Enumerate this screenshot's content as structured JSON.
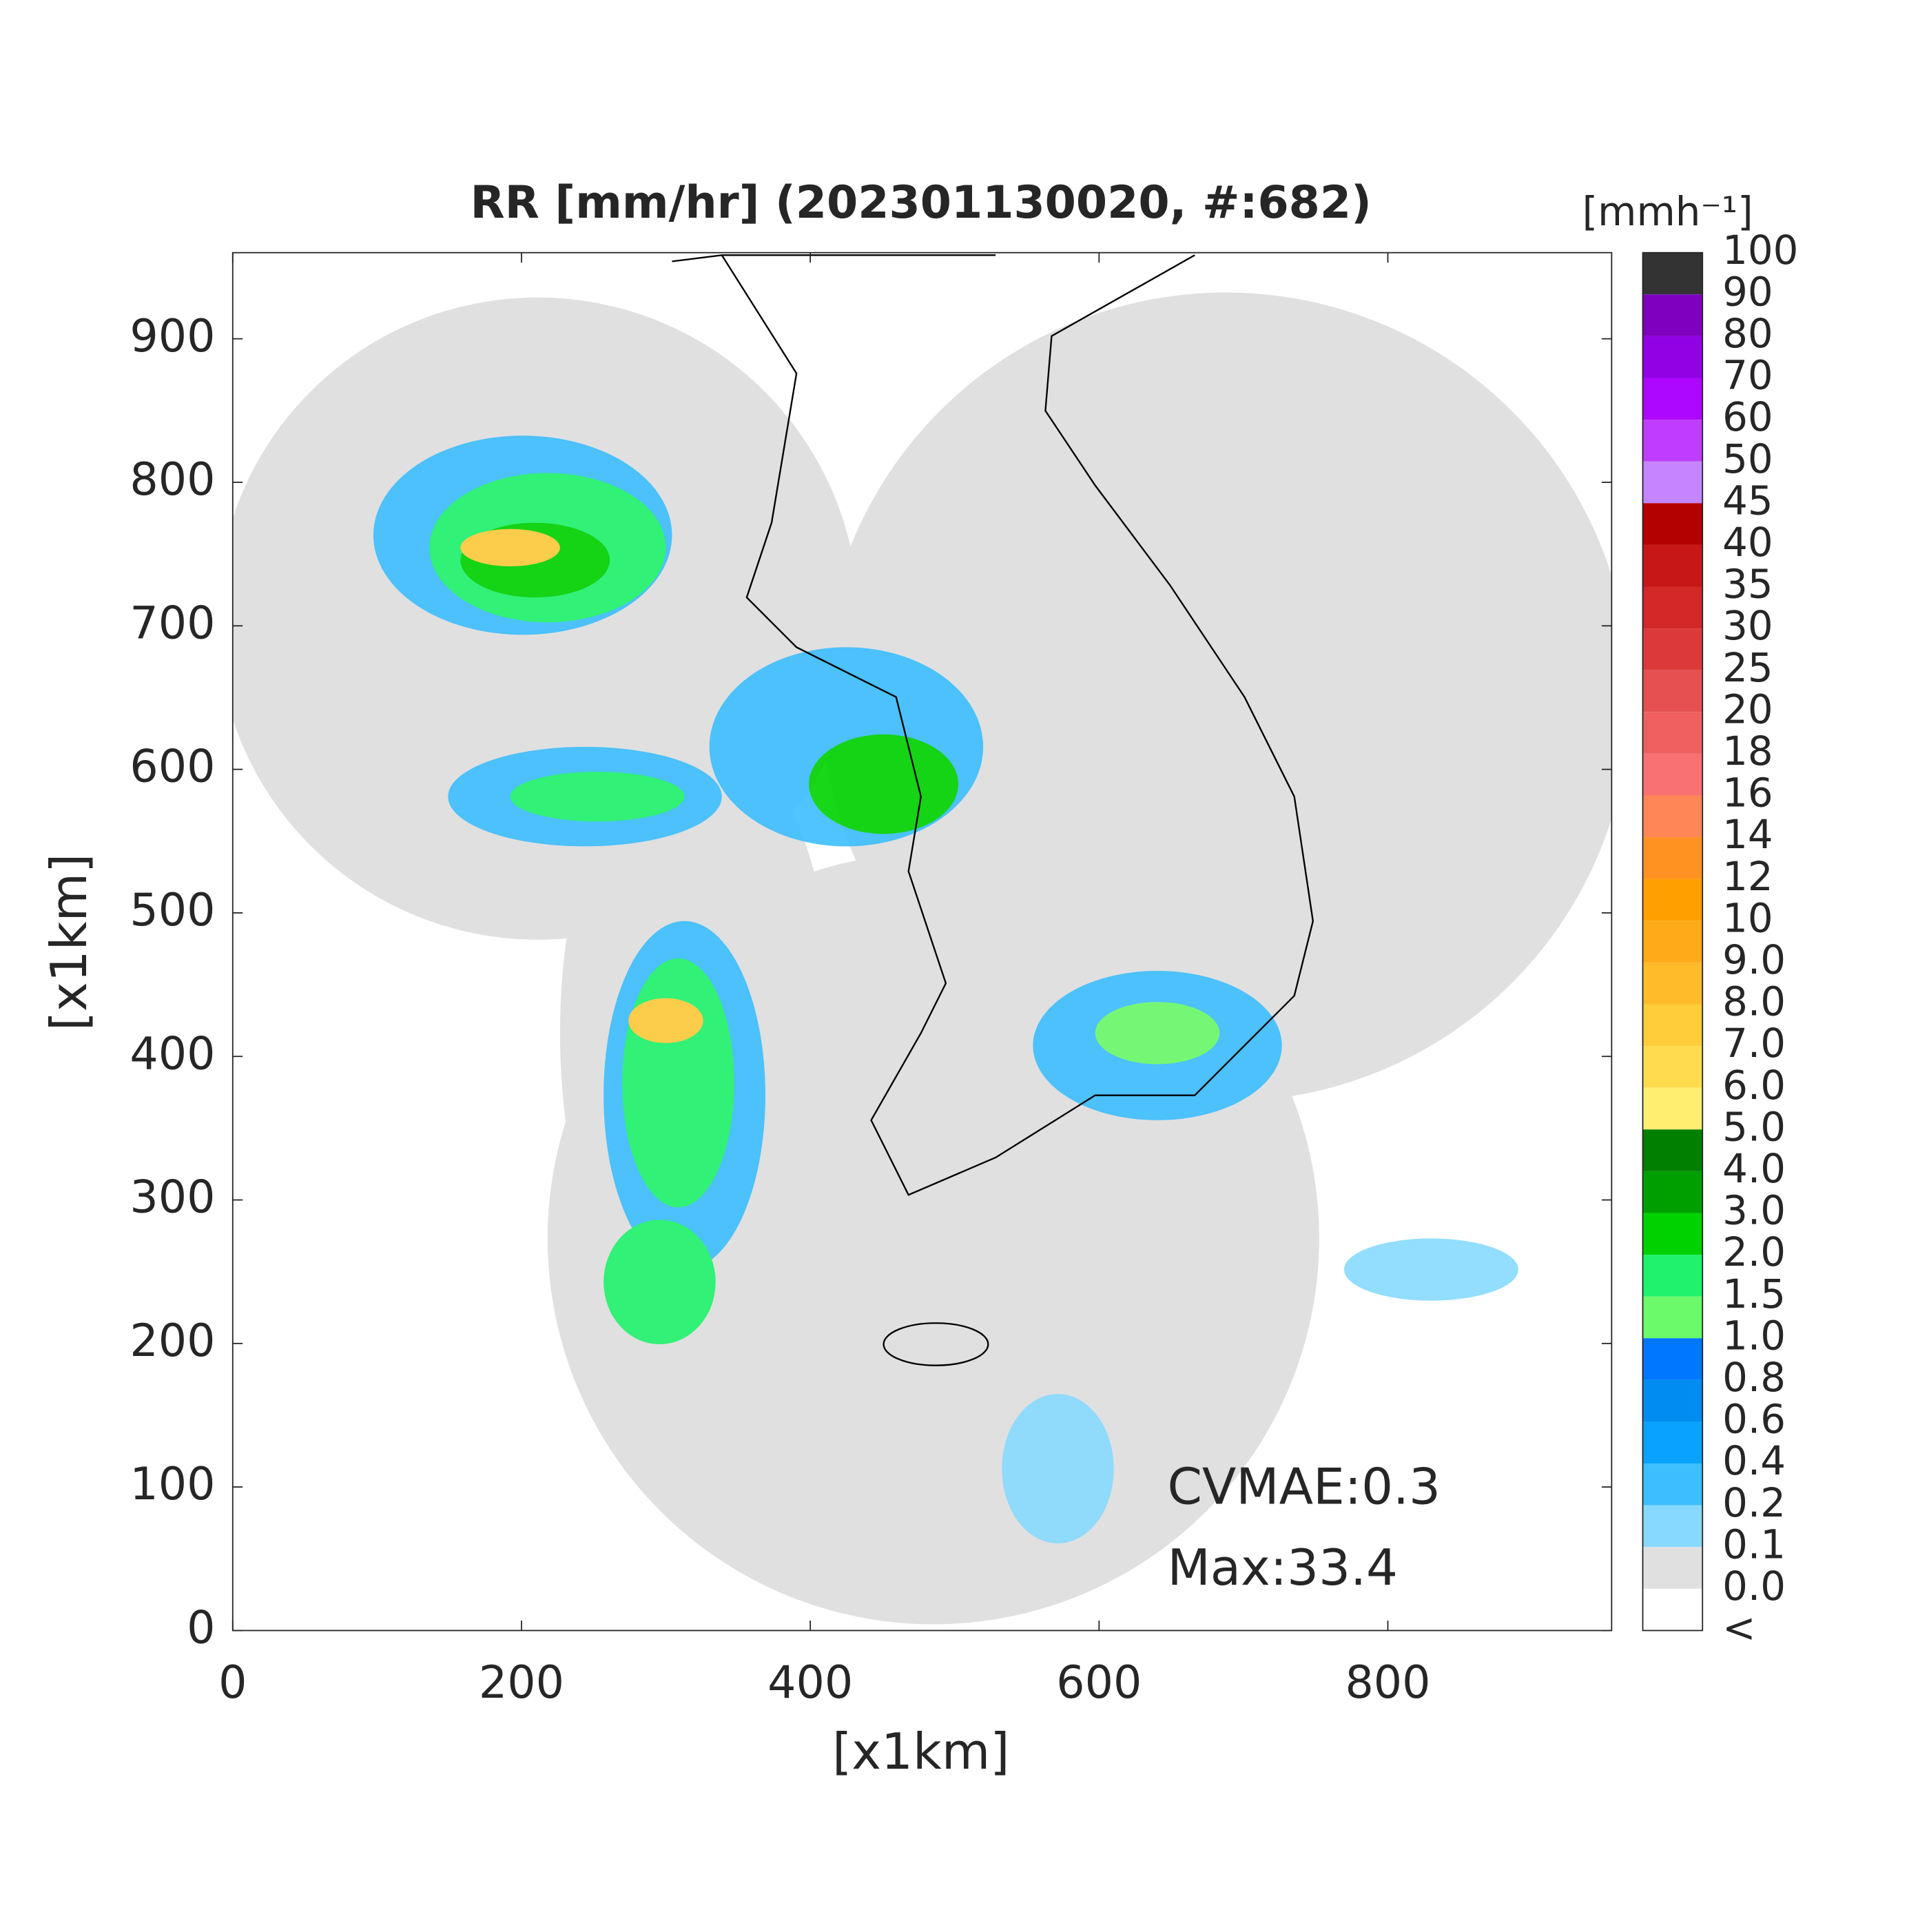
{
  "chart_data": {
    "type": "map",
    "title": "RR [mm/hr] (202301130020, #:682)",
    "xlabel": "[x1km]",
    "ylabel": "[x1km]",
    "xlim": [
      0,
      955
    ],
    "ylim": [
      0,
      960
    ],
    "xticks": [
      0,
      200,
      400,
      600,
      800
    ],
    "yticks": [
      0,
      100,
      200,
      300,
      400,
      500,
      600,
      700,
      800,
      900
    ],
    "annotations": [
      "CVMAE:0.3",
      "Max:33.4"
    ],
    "colorbar": {
      "title": "[mmh⁻¹]",
      "labels": [
        "100",
        "90",
        "80",
        "70",
        "60",
        "50",
        "45",
        "40",
        "35",
        "30",
        "25",
        "20",
        "18",
        "16",
        "14",
        "12",
        "10",
        "9.0",
        "8.0",
        "7.0",
        "6.0",
        "5.0",
        "4.0",
        "3.0",
        "2.0",
        "1.5",
        "1.0",
        "0.8",
        "0.6",
        "0.4",
        "0.2",
        "0.1",
        "0.0",
        "<"
      ],
      "colors": [
        "#333333",
        "#7f00bf",
        "#9200e4",
        "#ad07ff",
        "#c03cff",
        "#c485ff",
        "#b30000",
        "#c81717",
        "#d22828",
        "#dc3a3a",
        "#e65050",
        "#f06060",
        "#fa7171",
        "#ff8657",
        "#ff9220",
        "#ffa000",
        "#ffaa19",
        "#ffbb2a",
        "#ffcc3a",
        "#ffdc4e",
        "#ffee70",
        "#007f00",
        "#009f00",
        "#00d200",
        "#1ff36c",
        "#6afa6a",
        "#0077ff",
        "#008cf0",
        "#09a3ff",
        "#3cbeff",
        "#87d9ff",
        "#e0e0e0",
        "#ffffff"
      ]
    }
  }
}
